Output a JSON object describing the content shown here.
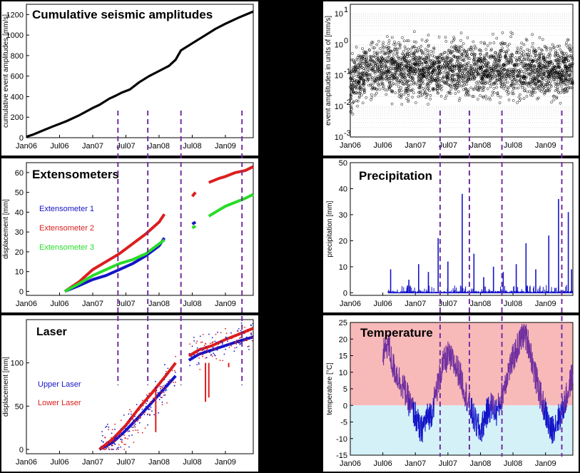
{
  "colors": {
    "black": "#000000",
    "blue": "#1414c8",
    "red": "#dc1e1e",
    "green": "#28dc28",
    "purple": "#7030a0",
    "temp_warm": "#f8b9b9",
    "temp_cold": "#d4f1f8",
    "grid": "#c8c8c8"
  },
  "x_ticks": [
    "Jan06",
    "Jul06",
    "Jan07",
    "Jul07",
    "Jan08",
    "Jul08",
    "Jan09"
  ],
  "event_markers": [
    2007.38,
    2007.83,
    2008.33,
    2009.25
  ],
  "chart_data": [
    {
      "id": "seismic",
      "type": "line",
      "title": "Cumulative seismic amplitudes",
      "ylabel": "cumulative event amplitudes [mm/s]",
      "xlim": [
        2006.0,
        2009.42
      ],
      "ylim": [
        0,
        1300
      ],
      "yticks": [
        0,
        200,
        400,
        600,
        800,
        1000,
        1200
      ],
      "series": [
        {
          "color": "black",
          "x": [
            2006.0,
            2006.1,
            2006.25,
            2006.4,
            2006.6,
            2006.8,
            2007.0,
            2007.1,
            2007.25,
            2007.35,
            2007.44,
            2007.56,
            2007.7,
            2007.85,
            2008.0,
            2008.15,
            2008.25,
            2008.33,
            2008.5,
            2008.7,
            2008.85,
            2009.0,
            2009.2,
            2009.42
          ],
          "y": [
            10,
            30,
            70,
            110,
            160,
            220,
            290,
            320,
            380,
            410,
            440,
            470,
            540,
            600,
            650,
            700,
            760,
            850,
            920,
            1000,
            1060,
            1110,
            1170,
            1230
          ]
        }
      ]
    },
    {
      "id": "amplitudes",
      "type": "scatter",
      "ylabel": "event amplitudes in units of [mm/s]",
      "xlim": [
        2006.0,
        2009.42
      ],
      "log_y": true,
      "ylim": [
        0.001,
        20
      ],
      "yticks": [
        "10^-3",
        "10^-2",
        "10^-1",
        "10^0",
        "10^1"
      ],
      "point_cloud": {
        "x_range": [
          2006.0,
          2009.42
        ],
        "median": 0.15,
        "spread_log10": 0.6
      },
      "grid": true
    },
    {
      "id": "extensometers",
      "type": "line",
      "title": "Extensometers",
      "ylabel": "displacement [mm]",
      "xlim": [
        2006.0,
        2009.42
      ],
      "ylim": [
        -2,
        65
      ],
      "yticks": [
        0,
        10,
        20,
        30,
        40,
        50,
        60
      ],
      "series": [
        {
          "name": "Extensometer 1",
          "color": "blue",
          "x": [
            2006.58,
            2006.8,
            2007.0,
            2007.2,
            2007.4,
            2007.6,
            2007.8,
            2008.0,
            2008.08
          ],
          "y": [
            0,
            3,
            6,
            8,
            11,
            14,
            18,
            23,
            27
          ]
        },
        {
          "name": "Extensometer 1",
          "color": "blue",
          "x": [
            2008.5,
            2008.55
          ],
          "y": [
            34,
            35
          ]
        },
        {
          "name": "Extensometer 2",
          "color": "red",
          "x": [
            2006.58,
            2006.8,
            2007.0,
            2007.2,
            2007.4,
            2007.6,
            2007.8,
            2008.0,
            2008.08
          ],
          "y": [
            0,
            5,
            11,
            15,
            19,
            24,
            29,
            35,
            39
          ]
        },
        {
          "name": "Extensometer 2",
          "color": "red",
          "x": [
            2008.5,
            2008.55
          ],
          "y": [
            48,
            50
          ]
        },
        {
          "name": "Extensometer 2",
          "color": "red",
          "x": [
            2008.75,
            2008.9,
            2009.0,
            2009.15,
            2009.3,
            2009.42
          ],
          "y": [
            55,
            57,
            58,
            60,
            61,
            63
          ]
        },
        {
          "name": "Extensometer 3",
          "color": "green",
          "x": [
            2006.58,
            2006.8,
            2007.0,
            2007.2,
            2007.4,
            2007.6,
            2007.8,
            2008.0,
            2008.08
          ],
          "y": [
            0,
            4,
            8,
            11,
            14,
            16,
            19,
            24,
            26
          ]
        },
        {
          "name": "Extensometer 3",
          "color": "green",
          "x": [
            2008.5,
            2008.55
          ],
          "y": [
            32,
            33
          ]
        },
        {
          "name": "Extensometer 3",
          "color": "green",
          "x": [
            2008.75,
            2008.9,
            2009.0,
            2009.15,
            2009.3,
            2009.42
          ],
          "y": [
            38,
            41,
            43,
            45,
            47,
            49
          ]
        }
      ],
      "legend": [
        "Extensometer 1",
        "Extensometer 2",
        "Extensometer 3"
      ]
    },
    {
      "id": "precipitation",
      "type": "bar",
      "title": "Precipitation",
      "ylabel": "precipitation [mm]",
      "xlim": [
        2006.0,
        2009.42
      ],
      "ylim": [
        -1,
        50
      ],
      "yticks": [
        0,
        10,
        20,
        30,
        40,
        50
      ],
      "peaks": {
        "x": [
          2006.62,
          2006.9,
          2007.05,
          2007.2,
          2007.35,
          2007.5,
          2007.72,
          2007.9,
          2008.05,
          2008.2,
          2008.35,
          2008.55,
          2008.7,
          2008.85,
          2009.05,
          2009.2,
          2009.35,
          2009.4
        ],
        "y": [
          9,
          5,
          11,
          8,
          21,
          12,
          38,
          15,
          6,
          10,
          8,
          11,
          19,
          9,
          22,
          36,
          31,
          9
        ]
      },
      "data_x_range": [
        2006.58,
        2009.42
      ]
    },
    {
      "id": "laser",
      "type": "line",
      "title": "Laser",
      "ylabel": "displacement [mm]",
      "xlim": [
        2006.0,
        2009.42
      ],
      "ylim": [
        -5,
        150
      ],
      "yticks": [
        0,
        50,
        100
      ],
      "series": [
        {
          "name": "Upper Laser",
          "color": "blue",
          "x": [
            2007.1,
            2007.3,
            2007.5,
            2007.7,
            2007.9,
            2008.1,
            2008.25
          ],
          "y": [
            0,
            8,
            22,
            38,
            55,
            72,
            85
          ]
        },
        {
          "name": "Upper Laser",
          "color": "blue",
          "x": [
            2008.45,
            2008.6,
            2008.8,
            2009.0,
            2009.2,
            2009.42
          ],
          "y": [
            103,
            110,
            115,
            120,
            125,
            130
          ]
        },
        {
          "name": "Lower Laser",
          "color": "red",
          "x": [
            2007.1,
            2007.3,
            2007.5,
            2007.7,
            2007.9,
            2008.1,
            2008.25
          ],
          "y": [
            0,
            12,
            28,
            48,
            66,
            85,
            100
          ]
        },
        {
          "name": "Lower Laser",
          "color": "red",
          "x": [
            2008.45,
            2008.6,
            2008.8,
            2009.0,
            2009.2,
            2009.42
          ],
          "y": [
            108,
            115,
            120,
            127,
            133,
            140
          ]
        }
      ],
      "legend": [
        "Upper Laser",
        "Lower Laser"
      ]
    },
    {
      "id": "temperature",
      "type": "line",
      "title": "Temperature",
      "ylabel": "temperature [°C]",
      "xlim": [
        2006.0,
        2009.42
      ],
      "ylim": [
        -15,
        25
      ],
      "yticks": [
        -15,
        -10,
        -5,
        0,
        5,
        10,
        15,
        20,
        25
      ],
      "x": [
        2006.5,
        2006.58,
        2006.65,
        2006.75,
        2006.85,
        2006.92,
        2007.0,
        2007.08,
        2007.17,
        2007.25,
        2007.33,
        2007.42,
        2007.5,
        2007.58,
        2007.67,
        2007.75,
        2007.83,
        2007.92,
        2008.0,
        2008.08,
        2008.17,
        2008.25,
        2008.33,
        2008.42,
        2008.5,
        2008.58,
        2008.67,
        2008.75,
        2008.83,
        2008.92,
        2009.0,
        2009.08,
        2009.17,
        2009.25,
        2009.33,
        2009.42
      ],
      "y": [
        15,
        19,
        12,
        8,
        4,
        0,
        -3,
        -8,
        -4,
        -2,
        5,
        12,
        15,
        13,
        10,
        5,
        0,
        -5,
        -8,
        -3,
        0,
        -2,
        3,
        10,
        14,
        18,
        22,
        18,
        10,
        3,
        -2,
        -8,
        -5,
        -2,
        3,
        10
      ]
    }
  ]
}
